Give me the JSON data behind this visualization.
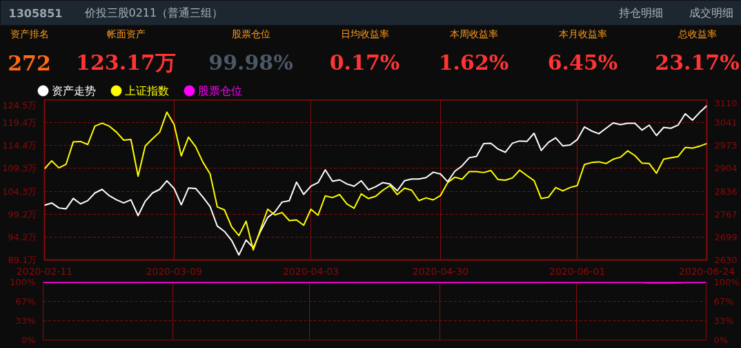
{
  "chart_data": [
    {
      "type": "other",
      "annotations": [
        "1305851",
        "价投三股0211（普通三组）",
        "持仓明细",
        "成交明细",
        "资产排名",
        "272",
        "帐面资产",
        "123.17万",
        "股票仓位",
        "99.98%",
        "日均收益率",
        "0.17%",
        "本周收益率",
        "1.62%",
        "本月收益率",
        "6.45%",
        "总收益率",
        "23.17%"
      ]
    },
    {
      "type": "line",
      "legend": "top left",
      "grid": true,
      "categories": [
        "2020-02-11",
        null,
        null,
        null,
        null,
        null,
        null,
        null,
        null,
        null,
        null,
        null,
        null,
        null,
        null,
        null,
        null,
        null,
        "2020-03-09",
        null,
        null,
        null,
        null,
        null,
        null,
        null,
        null,
        null,
        null,
        null,
        null,
        null,
        null,
        null,
        null,
        null,
        null,
        "2020-04-03",
        null,
        null,
        null,
        null,
        null,
        null,
        null,
        null,
        null,
        null,
        null,
        null,
        null,
        null,
        null,
        null,
        null,
        "2020-04-30",
        null,
        null,
        null,
        null,
        null,
        null,
        null,
        null,
        null,
        null,
        null,
        null,
        null,
        null,
        null,
        null,
        null,
        null,
        "2020-06-01",
        null,
        null,
        null,
        null,
        null,
        null,
        null,
        null,
        null,
        null,
        null,
        null,
        null,
        null,
        null,
        null,
        null,
        "2020-06-24"
      ],
      "ylim": [
        89.1,
        124.5
      ],
      "yticks": [
        {
          "value": 89.1,
          "label": "89.1万"
        },
        {
          "value": 94.16,
          "label": "94.2万"
        },
        {
          "value": 99.21,
          "label": "99.2万"
        },
        {
          "value": 104.27,
          "label": "104.3万"
        },
        {
          "value": 109.33,
          "label": "109.3万"
        },
        {
          "value": 114.39,
          "label": "114.4万"
        },
        {
          "value": 119.44,
          "label": "119.4万"
        },
        {
          "value": 124.5,
          "label": "124.5万"
        }
      ],
      "y2lim": [
        2630,
        3110
      ],
      "y2ticks": [
        2630,
        {
          "value": 2698.6,
          "label": "2699"
        },
        {
          "value": 2767.1,
          "label": "2767"
        },
        {
          "value": 2835.7,
          "label": "2836"
        },
        {
          "value": 2904.3,
          "label": "2904"
        },
        {
          "value": 2972.9,
          "label": "2973"
        },
        {
          "value": 3041.4,
          "label": "3041"
        },
        3110
      ],
      "series": [
        {
          "name": "资产走势",
          "color": "#ffffff",
          "values": [
            101.2,
            101.7,
            100.6,
            100.4,
            102.7,
            101.5,
            102.2,
            103.9,
            104.7,
            103.3,
            102.4,
            101.7,
            102.4,
            98.9,
            102.1,
            103.9,
            104.7,
            106.6,
            104.9,
            101.3,
            105.0,
            104.9,
            103.0,
            100.9,
            96.6,
            95.4,
            93.4,
            90.2,
            93.5,
            91.8,
            95.4,
            98.5,
            99.7,
            101.9,
            102.2,
            106.3,
            103.6,
            105.4,
            106.2,
            109.0,
            106.5,
            106.8,
            105.9,
            105.4,
            106.6,
            104.6,
            105.3,
            106.2,
            105.9,
            104.4,
            106.6,
            107.0,
            107.0,
            107.3,
            108.5,
            108.1,
            106.4,
            108.7,
            109.9,
            111.7,
            112.0,
            114.8,
            114.9,
            113.6,
            112.9,
            114.9,
            115.4,
            115.3,
            117.1,
            113.3,
            115.1,
            116.1,
            114.3,
            114.5,
            115.7,
            118.5,
            117.6,
            117.0,
            118.2,
            119.4,
            119.0,
            119.3,
            119.3,
            117.8,
            118.9,
            116.6,
            118.4,
            118.2,
            118.9,
            121.4,
            120.0,
            121.7,
            123.2
          ]
        },
        {
          "name": "上证指数",
          "color": "#ffff00",
          "axis": "y2",
          "values": [
            2903,
            2927,
            2906,
            2917,
            2984,
            2985,
            2976,
            3031,
            3040,
            3031,
            3013,
            2989,
            2991,
            2881,
            2972,
            2993,
            3013,
            3073,
            3036,
            2942,
            2998,
            2969,
            2923,
            2888,
            2789,
            2780,
            2729,
            2703,
            2746,
            2660,
            2722,
            2782,
            2765,
            2772,
            2748,
            2750,
            2734,
            2782,
            2764,
            2822,
            2817,
            2826,
            2798,
            2785,
            2828,
            2814,
            2821,
            2839,
            2853,
            2826,
            2845,
            2839,
            2808,
            2816,
            2810,
            2823,
            2862,
            2878,
            2872,
            2895,
            2895,
            2892,
            2898,
            2871,
            2869,
            2876,
            2899,
            2883,
            2868,
            2814,
            2818,
            2847,
            2837,
            2847,
            2853,
            2916,
            2922,
            2924,
            2919,
            2932,
            2938,
            2957,
            2943,
            2920,
            2919,
            2890,
            2932,
            2936,
            2940,
            2967,
            2965,
            2971,
            2979
          ]
        }
      ]
    },
    {
      "type": "line",
      "legend": "top left",
      "grid": true,
      "tick_labels": "y",
      "categories": [
        "2020-02-11",
        null,
        null,
        null,
        null,
        null,
        null,
        null,
        null,
        null,
        null,
        null,
        null,
        null,
        null,
        null,
        null,
        null,
        "2020-03-09",
        null,
        null,
        null,
        null,
        null,
        null,
        null,
        null,
        null,
        null,
        null,
        null,
        null,
        null,
        null,
        null,
        null,
        null,
        "2020-04-03",
        null,
        null,
        null,
        null,
        null,
        null,
        null,
        null,
        null,
        null,
        null,
        null,
        null,
        null,
        null,
        null,
        null,
        "2020-04-30",
        null,
        null,
        null,
        null,
        null,
        null,
        null,
        null,
        null,
        null,
        null,
        null,
        null,
        null,
        null,
        null,
        null,
        null,
        "2020-06-01",
        null,
        null,
        null,
        null,
        null,
        null,
        null,
        null,
        null,
        null,
        null,
        null,
        null,
        null,
        null,
        null,
        null,
        "2020-06-24"
      ],
      "ylim": [
        0,
        100
      ],
      "yticks": [
        {
          "value": 0,
          "label": "0%"
        },
        {
          "value": 33.3,
          "label": "33%"
        },
        {
          "value": 66.7,
          "label": "67%"
        },
        {
          "value": 100,
          "label": "100%"
        }
      ],
      "y2lim": [
        0,
        100
      ],
      "y2ticks": [
        {
          "value": 0,
          "label": "0%"
        },
        {
          "value": 33.3,
          "label": "33%"
        },
        {
          "value": 66.7,
          "label": "67%"
        },
        {
          "value": 100,
          "label": "100%"
        }
      ],
      "series": [
        {
          "name": "股票仓位",
          "color": "#ff00ff",
          "values": [
            100,
            100,
            100,
            100,
            100,
            100,
            100,
            100,
            100,
            100,
            100,
            100,
            100,
            100,
            100,
            100,
            100,
            100,
            100,
            100,
            100,
            100,
            100,
            100,
            100,
            100,
            100,
            100,
            100,
            100,
            100,
            100,
            100,
            100,
            100,
            100,
            100,
            100,
            100,
            100,
            100,
            100,
            100,
            100,
            100,
            100,
            100,
            100,
            100,
            100,
            100,
            100,
            100,
            100,
            100,
            100,
            100,
            100,
            100,
            100,
            100,
            100,
            100,
            100,
            100,
            100,
            100,
            100,
            100,
            100,
            100,
            100,
            100,
            100,
            100,
            100,
            100,
            100,
            100,
            100,
            100,
            100,
            100,
            100,
            99,
            99,
            99,
            99,
            99,
            100,
            100,
            100,
            100
          ]
        }
      ]
    }
  ]
}
